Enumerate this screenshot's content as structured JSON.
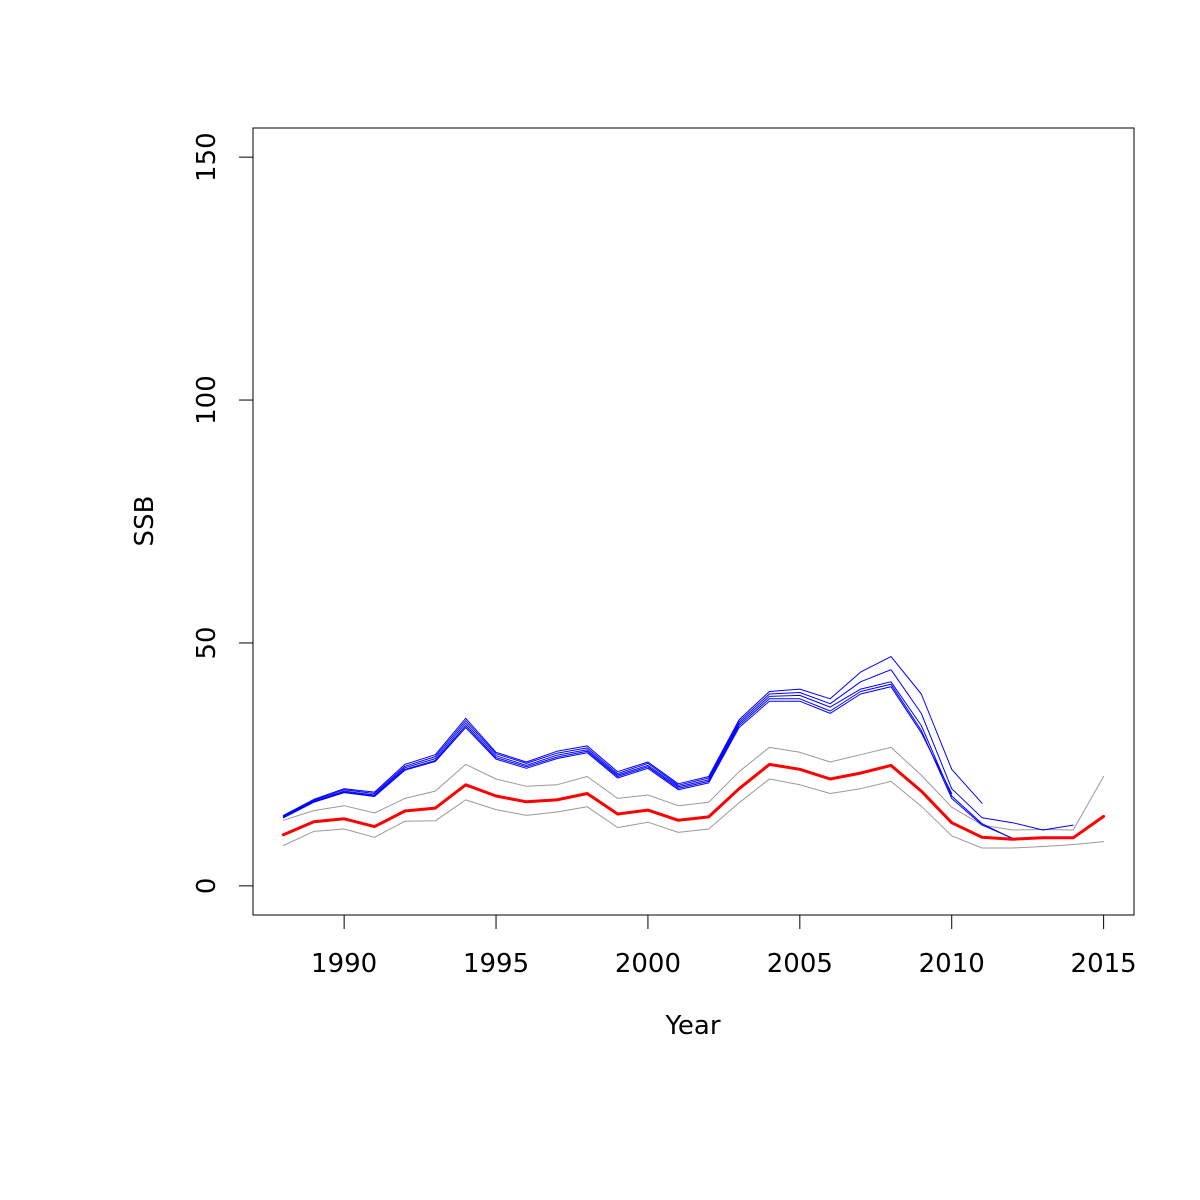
{
  "chart_data": {
    "type": "line",
    "xlabel": "Year",
    "ylabel": "SSB",
    "xlim": [
      1987,
      2016
    ],
    "ylim": [
      -6,
      156
    ],
    "x_ticks": [
      1990,
      1995,
      2000,
      2005,
      2010,
      2015
    ],
    "x_tick_labels": [
      "1990",
      "1995",
      "2000",
      "2005",
      "2010",
      "2015"
    ],
    "y_ticks": [
      0,
      50,
      100,
      150
    ],
    "y_tick_labels": [
      "0",
      "50",
      "100",
      "150"
    ],
    "grid": false,
    "legend": "none",
    "series": [
      {
        "role": "estimate",
        "color": "#ff0000",
        "width": 3,
        "x": [
          1988,
          1989,
          1990,
          1991,
          1992,
          1993,
          1994,
          1995,
          1996,
          1997,
          1998,
          1999,
          2000,
          2001,
          2002,
          2003,
          2004,
          2005,
          2006,
          2007,
          2008,
          2009,
          2010,
          2011,
          2012,
          2013,
          2014,
          2015
        ],
        "values": [
          10.5,
          13.2,
          13.8,
          12.2,
          15.4,
          16.0,
          20.8,
          18.5,
          17.3,
          17.7,
          19.0,
          14.8,
          15.6,
          13.5,
          14.2,
          20.0,
          25.0,
          24.0,
          22.0,
          23.2,
          24.8,
          19.5,
          13.0,
          10.0,
          9.6,
          9.9,
          9.9,
          14.3
        ]
      },
      {
        "role": "upper-bound",
        "color": "#999999",
        "width": 1,
        "x": [
          1988,
          1989,
          1990,
          1991,
          1992,
          1993,
          1994,
          1995,
          1996,
          1997,
          1998,
          1999,
          2000,
          2001,
          2002,
          2003,
          2004,
          2005,
          2006,
          2007,
          2008,
          2009,
          2010,
          2011,
          2012,
          2013,
          2014,
          2015
        ],
        "values": [
          13.5,
          15.5,
          16.5,
          15.0,
          18.0,
          19.5,
          25.0,
          22.0,
          20.5,
          20.8,
          22.5,
          18.0,
          18.7,
          16.5,
          17.2,
          23.5,
          28.5,
          27.5,
          25.5,
          27.0,
          28.5,
          22.8,
          16.2,
          12.5,
          11.5,
          11.6,
          11.5,
          22.5
        ]
      },
      {
        "role": "lower-bound",
        "color": "#999999",
        "width": 1,
        "x": [
          1988,
          1989,
          1990,
          1991,
          1992,
          1993,
          1994,
          1995,
          1996,
          1997,
          1998,
          1999,
          2000,
          2001,
          2002,
          2003,
          2004,
          2005,
          2006,
          2007,
          2008,
          2009,
          2010,
          2011,
          2012,
          2013,
          2014,
          2015
        ],
        "values": [
          8.3,
          11.2,
          11.7,
          10.0,
          13.3,
          13.4,
          17.7,
          15.7,
          14.5,
          15.2,
          16.3,
          12.0,
          13.1,
          11.0,
          11.7,
          17.1,
          22.0,
          20.8,
          19.0,
          20.0,
          21.5,
          16.4,
          10.3,
          7.8,
          7.8,
          8.1,
          8.5,
          9.1
        ]
      },
      {
        "role": "retrospective",
        "color": "#0000ff",
        "width": 1,
        "x": [
          1988,
          1989,
          1990,
          1991,
          1992,
          1993,
          1994,
          1995,
          1996,
          1997,
          1998,
          1999,
          2000,
          2001,
          2002,
          2003,
          2004,
          2005,
          2006,
          2007,
          2008,
          2009,
          2010,
          2011
        ],
        "values": [
          14.5,
          17.8,
          20.0,
          19.3,
          25.0,
          27.0,
          34.5,
          27.5,
          25.5,
          27.7,
          28.8,
          23.5,
          25.5,
          21.0,
          22.5,
          34.2,
          40.0,
          40.5,
          38.5,
          44.0,
          47.2,
          39.5,
          24.0,
          17.0
        ]
      },
      {
        "role": "retrospective",
        "color": "#0000ff",
        "width": 1,
        "x": [
          1988,
          1989,
          1990,
          1991,
          1992,
          1993,
          1994,
          1995,
          1996,
          1997,
          1998,
          1999,
          2000,
          2001,
          2002,
          2003,
          2004,
          2005,
          2006,
          2007,
          2008,
          2009,
          2010,
          2011,
          2012,
          2013,
          2014
        ],
        "values": [
          14.4,
          17.6,
          19.8,
          19.0,
          24.6,
          26.6,
          34.0,
          27.2,
          25.2,
          27.3,
          28.4,
          23.1,
          25.2,
          20.7,
          22.2,
          33.8,
          39.5,
          39.8,
          37.5,
          42.0,
          44.5,
          35.5,
          20.0,
          14.0,
          13.0,
          11.5,
          12.5
        ]
      },
      {
        "role": "retrospective",
        "color": "#0000ff",
        "width": 1,
        "x": [
          1988,
          1989,
          1990,
          1991,
          1992,
          1993,
          1994,
          1995,
          1996,
          1997,
          1998,
          1999,
          2000,
          2001,
          2002,
          2003,
          2004,
          2005,
          2006,
          2007,
          2008,
          2009,
          2010,
          2011,
          2012
        ],
        "values": [
          14.2,
          17.4,
          19.5,
          18.7,
          24.3,
          26.2,
          33.5,
          26.8,
          24.8,
          26.9,
          28.0,
          22.8,
          24.8,
          20.4,
          21.8,
          33.4,
          39.0,
          39.2,
          36.8,
          40.5,
          42.0,
          33.0,
          18.5,
          12.8,
          9.7
        ]
      },
      {
        "role": "retrospective",
        "color": "#0000ff",
        "width": 1,
        "x": [
          1988,
          1989,
          1990,
          1991,
          1992,
          1993,
          1994,
          1995,
          1996,
          1997,
          1998,
          1999,
          2000,
          2001,
          2002,
          2003,
          2004,
          2005,
          2006,
          2007,
          2008,
          2009,
          2010,
          2011,
          2012
        ],
        "values": [
          14.1,
          17.3,
          19.3,
          18.5,
          24.0,
          25.8,
          33.0,
          26.4,
          24.5,
          26.5,
          27.7,
          22.5,
          24.5,
          20.1,
          21.5,
          33.0,
          38.5,
          38.5,
          36.0,
          40.0,
          41.5,
          32.0,
          18.0,
          12.5,
          9.8
        ]
      },
      {
        "role": "retrospective",
        "color": "#0000ff",
        "width": 1,
        "x": [
          1988,
          1989,
          1990,
          1991,
          1992,
          1993,
          1994,
          1995,
          1996,
          1997,
          1998,
          1999,
          2000,
          2001,
          2002,
          2003,
          2004,
          2005,
          2006,
          2007,
          2008,
          2009,
          2010
        ],
        "values": [
          14.0,
          17.2,
          19.2,
          18.4,
          23.8,
          25.6,
          32.6,
          26.1,
          24.2,
          26.2,
          27.4,
          22.2,
          24.2,
          19.8,
          21.2,
          32.6,
          38.0,
          38.0,
          35.5,
          39.5,
          41.0,
          31.5,
          19.0
        ]
      }
    ]
  }
}
